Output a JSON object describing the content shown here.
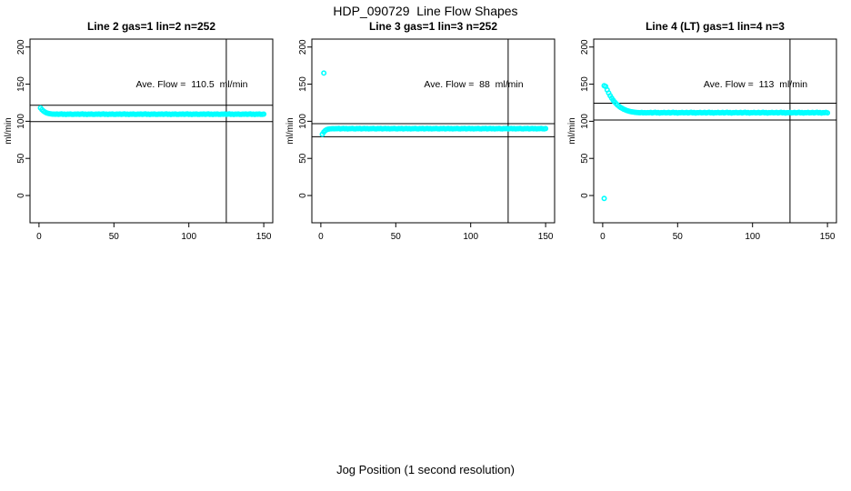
{
  "page": {
    "main_title": "HDP_090729  Line Flow Shapes",
    "x_axis_label": "Jog Position (1 second resolution)"
  },
  "colors": {
    "points": "#00FFFF",
    "axis": "#000000",
    "background": "#FFFFFF"
  },
  "chart_data": [
    {
      "type": "scatter",
      "title": "Line 2 gas=1 lin=2 n=252",
      "annotation": "Ave. Flow =  110.5  ml/min",
      "ave_flow_ml_min": 110.5,
      "n": 252,
      "ylabel": "ml/min",
      "x_ticks": [
        0,
        50,
        100,
        150
      ],
      "y_ticks": [
        0,
        50,
        100,
        150,
        200
      ],
      "xlim": [
        -6,
        156
      ],
      "ylim": [
        -36.7,
        210.7
      ],
      "ref_hlines": [
        99.5,
        121.6
      ],
      "ref_vline_x": 125,
      "grid": false,
      "x_start": 1,
      "x_step": 1,
      "y_values": [
        118.0,
        115.7,
        113.8,
        112.4,
        111.4,
        110.7,
        110.2,
        109.9,
        109.7,
        109.6,
        109.5,
        109.8,
        109.3,
        109.6,
        109.9,
        109.4,
        109.7,
        109.2,
        109.6,
        109.5,
        109.8,
        109.4,
        109.3,
        109.7,
        109.5,
        109.8,
        109.3,
        109.6,
        109.9,
        109.4,
        109.7,
        109.2,
        109.6,
        109.5,
        109.8,
        109.4,
        109.3,
        109.7,
        109.5,
        109.8,
        109.3,
        109.6,
        109.9,
        109.4,
        109.7,
        109.2,
        109.6,
        109.5,
        109.8,
        109.4,
        109.3,
        109.7,
        109.5,
        109.8,
        109.3,
        109.6,
        109.9,
        109.4,
        109.7,
        109.2,
        109.6,
        109.5,
        109.8,
        109.4,
        109.3,
        109.7,
        109.5,
        109.8,
        109.3,
        109.6,
        109.9,
        109.4,
        109.7,
        109.2,
        109.6,
        109.5,
        109.8,
        109.4,
        109.3,
        109.7,
        109.5,
        109.8,
        109.3,
        109.6,
        109.9,
        109.4,
        109.7,
        109.2,
        109.6,
        109.5,
        109.8,
        109.4,
        109.3,
        109.7,
        109.5,
        109.8,
        109.3,
        109.6,
        109.9,
        109.4,
        109.7,
        109.2,
        109.6,
        109.5,
        109.8,
        109.4,
        109.3,
        109.7,
        109.5,
        109.8,
        109.3,
        109.6,
        109.9,
        109.4,
        109.7,
        109.2,
        109.6,
        109.5,
        109.8,
        109.4,
        109.3,
        109.7,
        109.5,
        109.8,
        109.3,
        109.6,
        109.9,
        109.4,
        109.7,
        109.2,
        109.6,
        109.5,
        109.8,
        109.4,
        109.3,
        109.7,
        109.5,
        109.8,
        109.3,
        109.6,
        109.9,
        109.4,
        109.7,
        109.2,
        109.6,
        109.5,
        109.8,
        109.4,
        109.3,
        109.7
      ],
      "outliers": []
    },
    {
      "type": "scatter",
      "title": "Line 3 gas=1 lin=3 n=252",
      "annotation": "Ave. Flow =  88  ml/min",
      "ave_flow_ml_min": 88,
      "n": 252,
      "ylabel": "ml/min",
      "x_ticks": [
        0,
        50,
        100,
        150
      ],
      "y_ticks": [
        0,
        50,
        100,
        150,
        200
      ],
      "xlim": [
        -6,
        156
      ],
      "ylim": [
        -36.7,
        210.7
      ],
      "ref_hlines": [
        79.2,
        96.8
      ],
      "ref_vline_x": 125,
      "grid": false,
      "x_start": 1,
      "x_step": 1,
      "y_values": [
        82.5,
        85.6,
        87.6,
        88.8,
        89.4,
        89.7,
        89.9,
        90.0,
        89.9,
        90.1,
        90.0,
        90.3,
        89.8,
        90.1,
        90.4,
        89.9,
        90.2,
        89.7,
        90.1,
        90.0,
        90.3,
        89.9,
        89.8,
        90.2,
        90.0,
        90.3,
        89.8,
        90.1,
        90.4,
        89.9,
        90.2,
        89.7,
        90.1,
        90.0,
        90.3,
        89.9,
        89.8,
        90.2,
        90.0,
        90.3,
        89.8,
        90.1,
        90.4,
        89.9,
        90.2,
        89.7,
        90.1,
        90.0,
        90.3,
        89.9,
        89.8,
        90.2,
        90.0,
        90.3,
        89.8,
        90.1,
        90.4,
        89.9,
        90.2,
        89.7,
        90.1,
        90.0,
        90.3,
        89.9,
        89.8,
        90.2,
        90.0,
        90.3,
        89.8,
        90.1,
        90.4,
        89.9,
        90.2,
        89.7,
        90.1,
        90.0,
        90.3,
        89.9,
        89.8,
        90.2,
        90.0,
        90.3,
        89.8,
        90.1,
        90.4,
        89.9,
        90.2,
        89.7,
        90.1,
        90.0,
        90.3,
        89.9,
        89.8,
        90.2,
        90.0,
        90.3,
        89.8,
        90.1,
        90.4,
        89.9,
        90.2,
        89.7,
        90.1,
        90.0,
        90.3,
        89.9,
        89.8,
        90.2,
        90.0,
        90.3,
        89.8,
        90.1,
        90.4,
        89.9,
        90.2,
        89.7,
        90.1,
        90.0,
        90.3,
        89.9,
        89.8,
        90.2,
        90.0,
        90.3,
        89.8,
        90.1,
        90.4,
        89.9,
        90.2,
        89.7,
        90.1,
        90.0,
        90.3,
        89.9,
        89.8,
        90.2,
        90.0,
        90.3,
        89.8,
        90.1,
        90.4,
        89.9,
        90.2,
        89.7,
        90.1,
        90.0,
        90.3,
        89.9,
        89.8,
        90.2
      ],
      "outliers": [
        {
          "x": 2,
          "y": 165
        }
      ]
    },
    {
      "type": "scatter",
      "title": "Line 4 (LT) gas=1 lin=4 n=3",
      "annotation": "Ave. Flow =  113  ml/min",
      "ave_flow_ml_min": 113,
      "n": 3,
      "ylabel": "ml/min",
      "x_ticks": [
        0,
        50,
        100,
        150
      ],
      "y_ticks": [
        0,
        50,
        100,
        150,
        200
      ],
      "xlim": [
        -6,
        156
      ],
      "ylim": [
        -36.7,
        210.7
      ],
      "ref_hlines": [
        101.7,
        124.3
      ],
      "ref_vline_x": 125,
      "grid": false,
      "x_start": 1,
      "x_step": 1,
      "y_values": [
        148.0,
        146.9,
        142.3,
        138.2,
        134.5,
        131.3,
        128.4,
        125.9,
        123.7,
        121.8,
        120.1,
        118.6,
        117.4,
        116.3,
        115.4,
        114.6,
        113.9,
        113.4,
        112.9,
        112.5,
        112.2,
        112.0,
        111.8,
        111.6,
        111.5,
        111.9,
        111.4,
        111.7,
        111.3,
        111.6,
        111.5,
        112.0,
        111.2,
        111.7,
        112.1,
        111.4,
        111.8,
        111.1,
        111.6,
        111.5,
        112.0,
        111.3,
        111.5,
        112.0,
        111.2,
        111.7,
        112.1,
        111.4,
        111.8,
        111.1,
        111.6,
        111.5,
        112.0,
        111.3,
        111.5,
        112.0,
        111.2,
        111.7,
        112.1,
        111.4,
        111.8,
        111.1,
        111.6,
        111.5,
        112.0,
        111.3,
        111.5,
        112.0,
        111.2,
        111.7,
        112.1,
        111.4,
        111.8,
        111.1,
        111.6,
        111.5,
        112.0,
        111.3,
        111.5,
        112.0,
        111.2,
        111.7,
        112.1,
        111.4,
        111.8,
        111.1,
        111.6,
        111.5,
        112.0,
        111.3,
        111.5,
        112.0,
        111.2,
        111.7,
        112.1,
        111.4,
        111.8,
        111.1,
        111.6,
        111.5,
        112.0,
        111.3,
        111.5,
        112.0,
        111.2,
        111.7,
        112.1,
        111.4,
        111.8,
        111.1,
        111.6,
        111.5,
        112.0,
        111.3,
        111.5,
        112.0,
        111.2,
        111.7,
        112.1,
        111.4,
        111.8,
        111.1,
        111.6,
        111.5,
        112.0,
        111.3,
        111.5,
        112.0,
        111.2,
        111.7,
        112.1,
        111.4,
        111.8,
        111.1,
        111.6,
        111.5,
        112.0,
        111.3,
        111.5,
        112.0,
        111.2,
        111.7,
        112.1,
        111.4,
        111.8,
        111.1,
        111.6,
        111.5,
        112.0,
        111.3
      ],
      "outliers": [
        {
          "x": 1,
          "y": -4
        }
      ]
    }
  ]
}
